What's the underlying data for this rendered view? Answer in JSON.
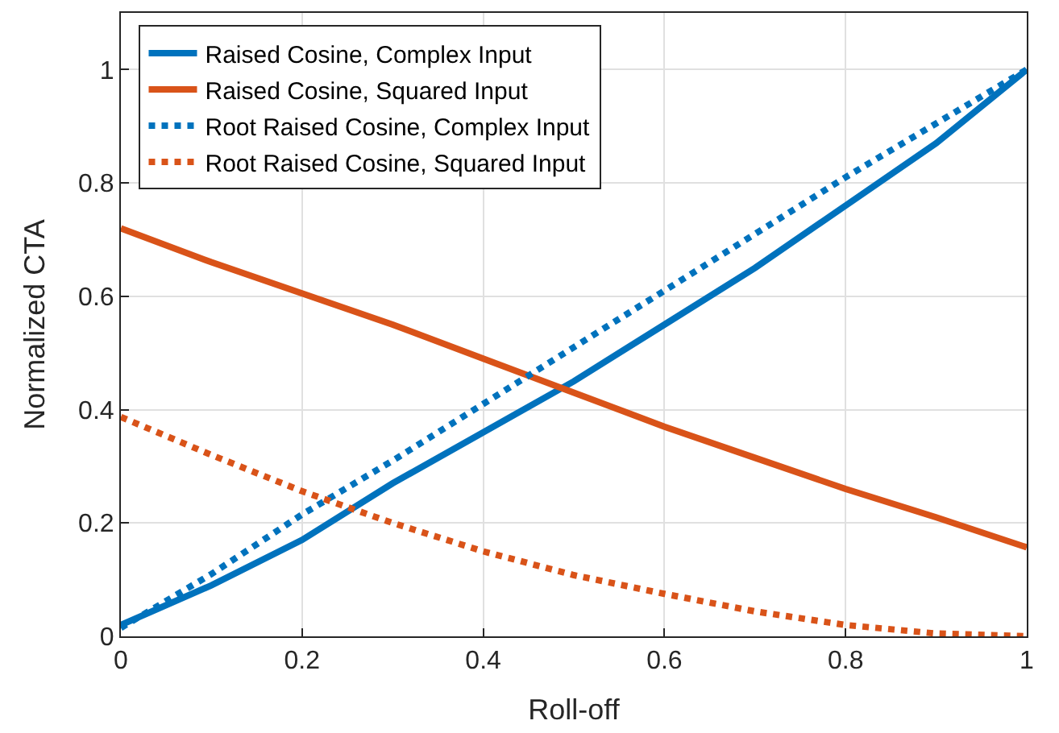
{
  "chart_data": {
    "type": "line",
    "xlabel": "Roll-off",
    "ylabel": "Normalized CTA",
    "x": [
      0,
      0.1,
      0.2,
      0.3,
      0.4,
      0.5,
      0.6,
      0.7,
      0.8,
      0.9,
      1
    ],
    "series": [
      {
        "name": "Raised Cosine, Complex Input",
        "color": "#0072bd",
        "line_style": "solid",
        "values": [
          0.02,
          0.09,
          0.17,
          0.27,
          0.36,
          0.45,
          0.55,
          0.65,
          0.76,
          0.87,
          1.0
        ]
      },
      {
        "name": "Raised Cosine, Squared Input",
        "color": "#d95319",
        "line_style": "solid",
        "values": [
          0.72,
          0.66,
          0.605,
          0.55,
          0.49,
          0.43,
          0.37,
          0.315,
          0.26,
          0.21,
          0.157
        ]
      },
      {
        "name": "Root Raised Cosine, Complex Input",
        "color": "#0072bd",
        "line_style": "dotted",
        "values": [
          0.015,
          0.11,
          0.215,
          0.31,
          0.41,
          0.51,
          0.61,
          0.71,
          0.81,
          0.905,
          1.0
        ]
      },
      {
        "name": "Root Raised Cosine, Squared Input",
        "color": "#d95319",
        "line_style": "dotted",
        "values": [
          0.387,
          0.32,
          0.256,
          0.2,
          0.15,
          0.108,
          0.075,
          0.044,
          0.02,
          0.005,
          0.0
        ]
      }
    ],
    "xlim": [
      0,
      1
    ],
    "xticks": [
      0,
      0.2,
      0.4,
      0.6,
      0.8,
      1
    ],
    "ylim": [
      0,
      1.1
    ],
    "yticks": [
      0,
      0.2,
      0.4,
      0.6,
      0.8,
      1
    ],
    "grid": true,
    "legend": "top left",
    "marker": "none"
  }
}
